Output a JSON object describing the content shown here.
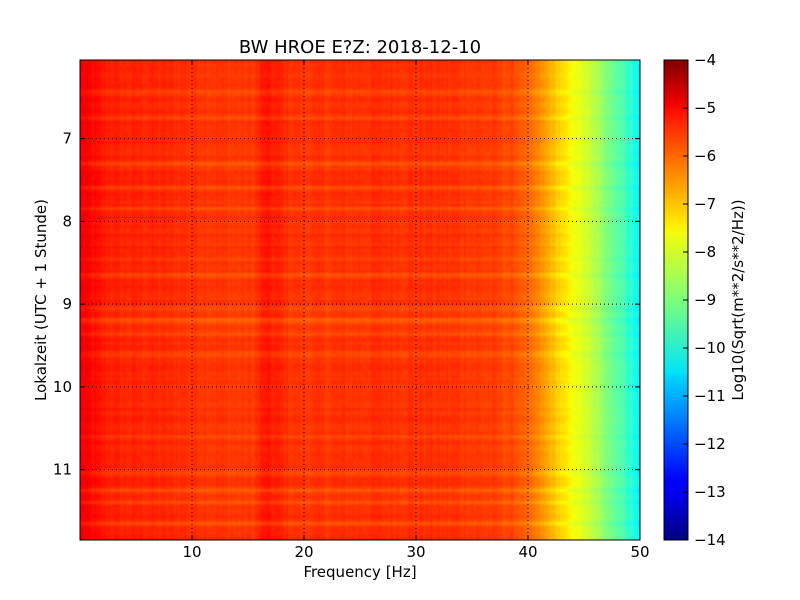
{
  "chart_data": {
    "type": "heatmap",
    "title": "BW HROE E?Z: 2018-12-10",
    "xlabel": "Frequency [Hz]",
    "ylabel": "Lokalzeit (UTC + 1 Stunde)",
    "xlim": [
      0,
      50
    ],
    "ylim": [
      11.85,
      6.05
    ],
    "x_ticks": [
      10,
      20,
      30,
      40,
      50
    ],
    "y_ticks": [
      7,
      8,
      9,
      10,
      11
    ],
    "grid": true,
    "colormap": "jet",
    "colorbar": {
      "label": "Log10(Sqrt(m**2/s**2/Hz))",
      "range": [
        -14,
        -4
      ],
      "ticks": [
        -4,
        -5,
        -6,
        -7,
        -8,
        -9,
        -10,
        -11,
        -12,
        -13,
        -14
      ]
    },
    "spectrum_profile": {
      "frequency": [
        0,
        1,
        2,
        4,
        6,
        8,
        10,
        12,
        14,
        15.5,
        16.5,
        17.5,
        19,
        22,
        26,
        30,
        34,
        37,
        39,
        40,
        41,
        42,
        43,
        44,
        45,
        46,
        47,
        48,
        49,
        50
      ],
      "log_amplitude": [
        -5.1,
        -5.3,
        -5.5,
        -5.6,
        -5.6,
        -5.65,
        -5.7,
        -5.75,
        -5.8,
        -5.8,
        -5.45,
        -5.55,
        -5.75,
        -5.75,
        -5.7,
        -5.7,
        -5.75,
        -5.85,
        -6.0,
        -6.3,
        -6.6,
        -7.0,
        -7.4,
        -7.8,
        -8.1,
        -8.5,
        -8.9,
        -9.3,
        -9.7,
        -10.3
      ]
    },
    "time_events": [
      {
        "time": 6.45,
        "delta": 0.35
      },
      {
        "time": 6.75,
        "delta": 0.3
      },
      {
        "time": 7.3,
        "delta": 0.35
      },
      {
        "time": 7.6,
        "delta": 0.4
      },
      {
        "time": 7.85,
        "delta": 0.3
      },
      {
        "time": 8.45,
        "delta": 0.3
      },
      {
        "time": 8.65,
        "delta": 0.3
      },
      {
        "time": 9.05,
        "delta": 0.35
      },
      {
        "time": 9.2,
        "delta": 0.55
      },
      {
        "time": 9.35,
        "delta": 0.35
      },
      {
        "time": 9.6,
        "delta": 0.3
      },
      {
        "time": 10.6,
        "delta": 0.3
      },
      {
        "time": 11.05,
        "delta": 0.3
      },
      {
        "time": 11.25,
        "delta": 0.4
      },
      {
        "time": 11.4,
        "delta": 0.35
      },
      {
        "time": 11.65,
        "delta": 0.35
      }
    ]
  }
}
